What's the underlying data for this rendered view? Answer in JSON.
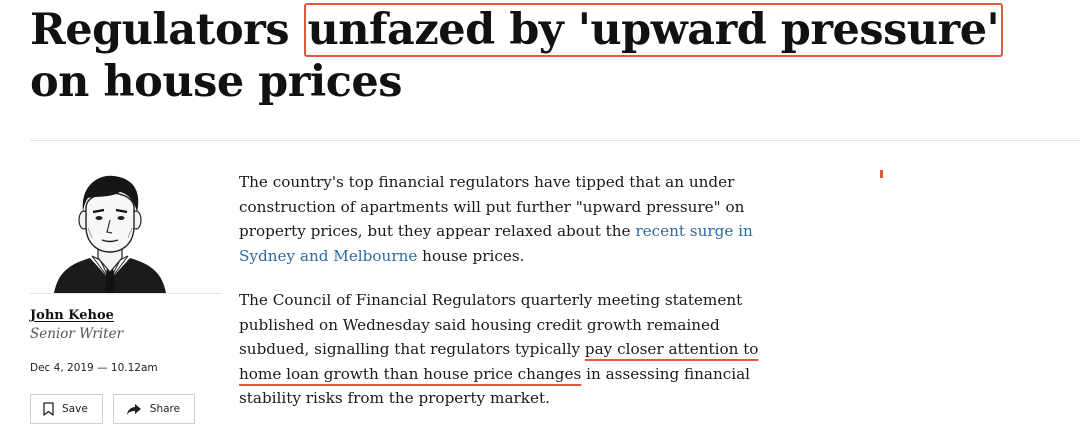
{
  "article": {
    "headline_before": "Regulators ",
    "headline_highlight": "unfazed by 'upward pressure'",
    "headline_after": " on house prices",
    "paragraph1": {
      "text_a": "The country's top financial regulators have tipped that an under construction of apartments will put further \"upward pressure\" on property prices, but they appear relaxed about the ",
      "link": "recent surge in Sydney and Melbourne",
      "text_b": " house prices."
    },
    "paragraph2": {
      "text_a": "The Council of Financial Regulators quarterly meeting statement published on Wednesday said housing credit growth remained subdued, signalling that regulators typically ",
      "underlined": "pay closer attention to home loan growth than house price changes",
      "text_b": " in assessing financial stability risks from the property market."
    }
  },
  "author": {
    "name": "John Kehoe",
    "role": "Senior Writer",
    "date": "Dec 4, 2019 — 10.12am"
  },
  "actions": {
    "save_label": "Save",
    "save_icon": "bookmark-icon",
    "share_label": "Share",
    "share_icon": "share-arrow-icon"
  },
  "colors": {
    "highlight": "#e0593a",
    "link": "#2d6aa3"
  }
}
